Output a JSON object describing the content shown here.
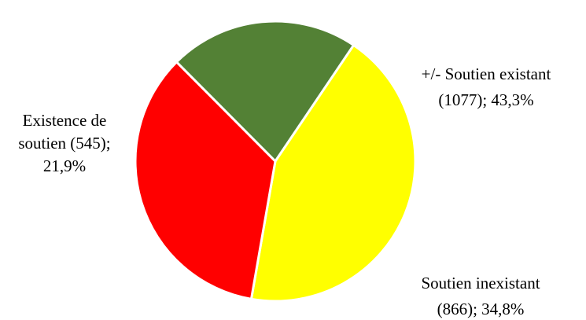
{
  "chart_data": {
    "type": "pie",
    "slices": [
      {
        "name": "+/- Soutien existant",
        "count": 1077,
        "percent": 43.3,
        "color": "#FFFF00",
        "label_lines": [
          "+/- Soutien existant",
          "(1077);  43,3%"
        ]
      },
      {
        "name": "Soutien inexistant",
        "count": 866,
        "percent": 34.8,
        "color": "#FF0000",
        "label_lines": [
          "Soutien inexistant",
          "(866);  34,8%"
        ]
      },
      {
        "name": "Existence de soutien",
        "count": 545,
        "percent": 21.9,
        "color": "#538135",
        "label_lines": [
          "Existence  de",
          "soutien (545);",
          "21,9%"
        ]
      }
    ],
    "legend": "none",
    "title": ""
  }
}
